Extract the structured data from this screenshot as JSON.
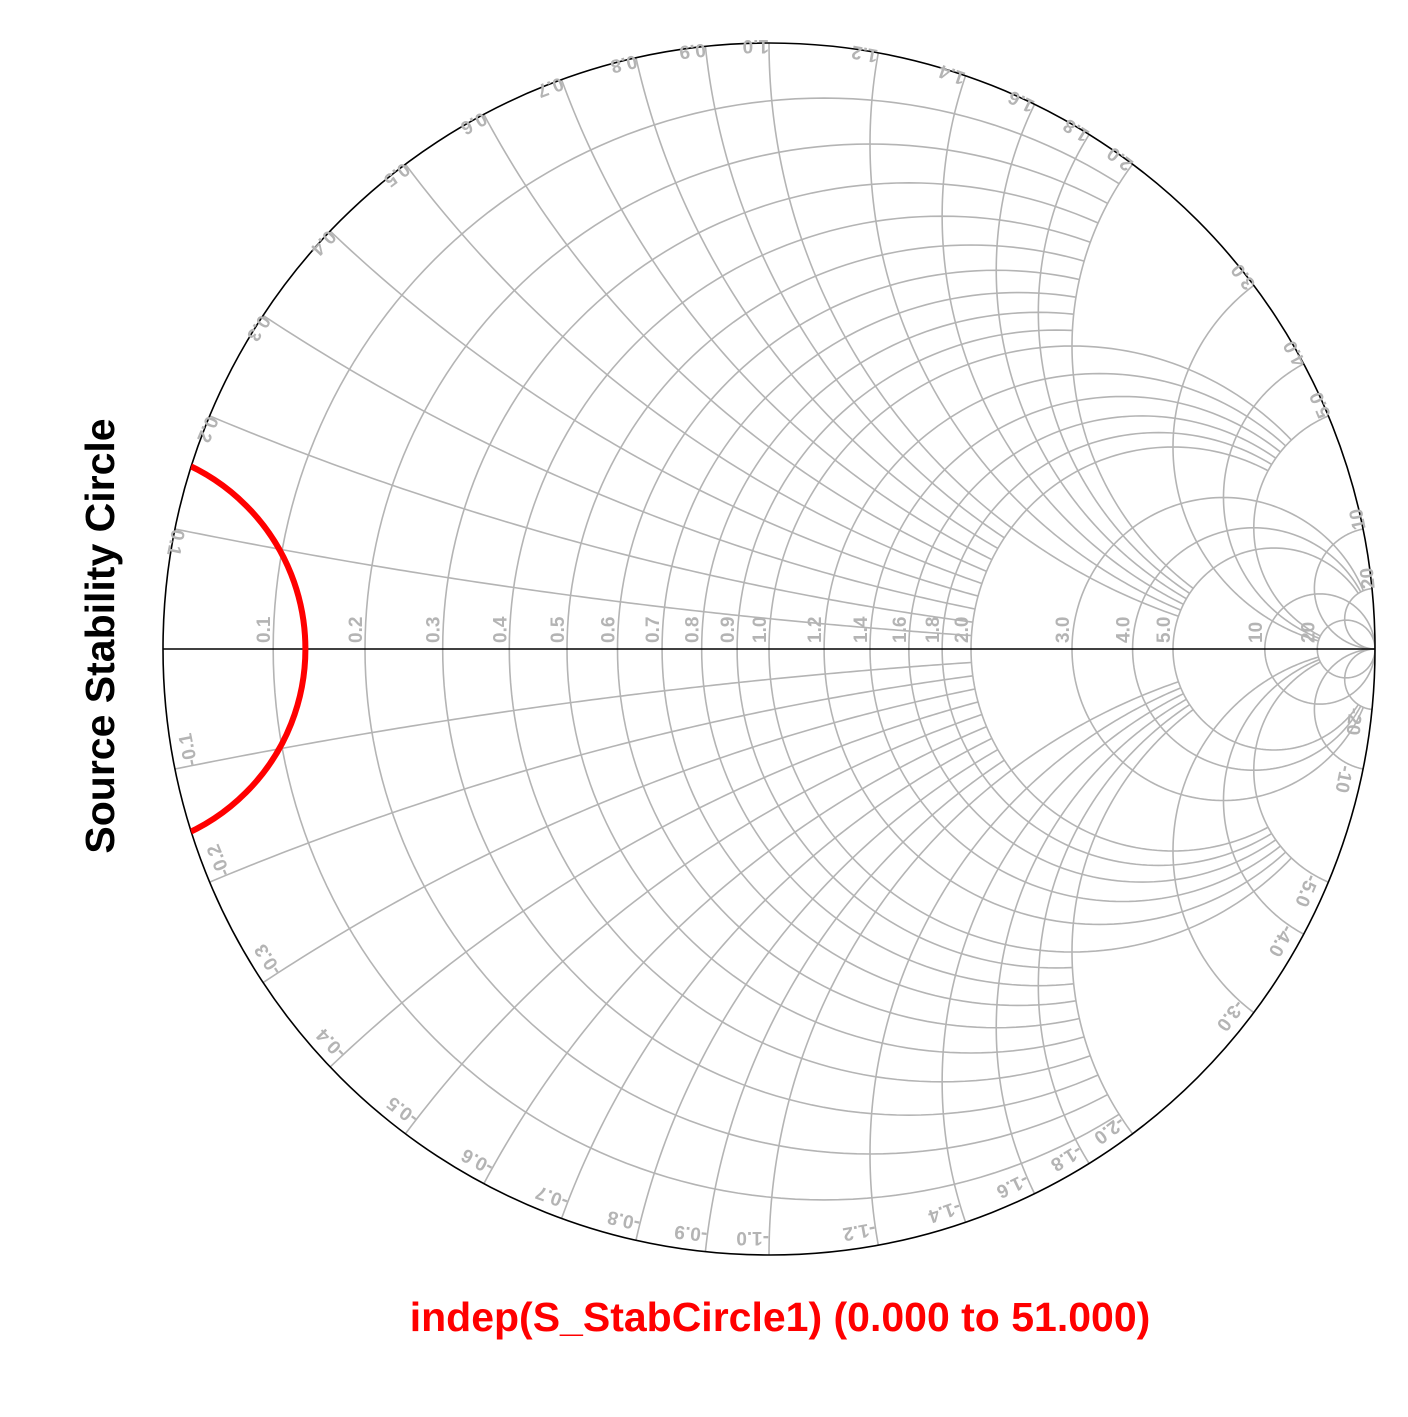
{
  "chart_data": {
    "type": "smith-chart",
    "title": "",
    "ylabel": "Source Stability Circle",
    "xlabel": "indep(S_StabCircle1) (0.000 to 51.000)",
    "colors": {
      "grid": "#b4b4b4",
      "outline": "#000000",
      "series": "#ff0000",
      "ylabel": "#000000",
      "xlabel": "#ff0000"
    },
    "resistance_tick_labels": [
      "0.1",
      "0.2",
      "0.3",
      "0.4",
      "0.5",
      "0.6",
      "0.7",
      "0.8",
      "0.9",
      "1.0",
      "1.2",
      "1.4",
      "1.6",
      "1.8",
      "2.0",
      "3.0",
      "4.0",
      "5.0",
      "10",
      "20"
    ],
    "reactance_tick_labels_positive": [
      "0.1",
      "0.2",
      "0.3",
      "0.4",
      "0.5",
      "0.6",
      "0.7",
      "0.8",
      "0.9",
      "1.0",
      "1.2",
      "1.4",
      "1.6",
      "1.8",
      "2.0",
      "3.0",
      "4.0",
      "5.0",
      "10",
      "20"
    ],
    "reactance_tick_labels_negative": [
      "-0.1",
      "-0.2",
      "-0.3",
      "-0.4",
      "-0.5",
      "-0.6",
      "-0.7",
      "-0.8",
      "-0.9",
      "-1.0",
      "-1.2",
      "-1.4",
      "-1.6",
      "-1.8",
      "-2.0",
      "-3.0",
      "-4.0",
      "-5.0",
      "-10",
      "-20"
    ],
    "series": [
      {
        "kind": "stability-circle-arc",
        "color": "#ff0000",
        "center_gamma": [
          -1.1,
          0.0
        ],
        "radius_gamma": 0.335,
        "visible_portion": "inside the unit circle"
      }
    ]
  }
}
